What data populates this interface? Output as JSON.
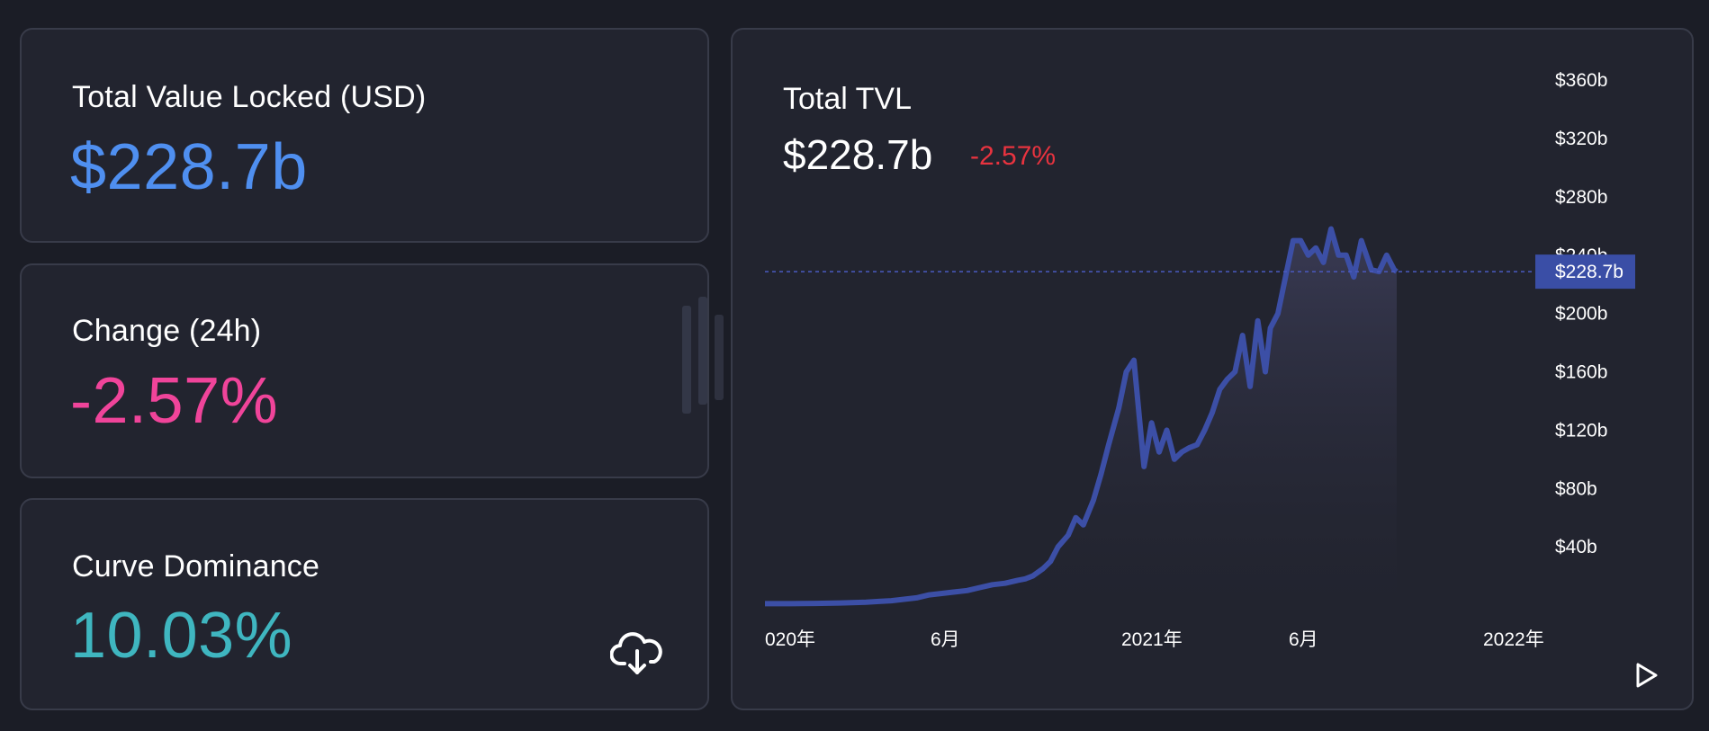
{
  "stats": {
    "tvl": {
      "label": "Total Value Locked (USD)",
      "value": "$228.7b",
      "color": "#4f8ff0"
    },
    "change": {
      "label": "Change (24h)",
      "value": "-2.57%",
      "color": "#f0449a"
    },
    "dominance": {
      "label": "Curve Dominance",
      "value": "10.03%",
      "color": "#3fb6c0"
    }
  },
  "icons": {
    "download": "cloud-download-icon",
    "play": "play-icon"
  },
  "chart": {
    "title": "Total TVL",
    "value": "$228.7b",
    "change": "-2.57%",
    "change_color": "#e8333f",
    "line_color": "#3c4fa6",
    "current_label": "$228.7b"
  },
  "chart_data": {
    "type": "area",
    "title": "Total TVL",
    "x_tick_labels": [
      "020年",
      "6月",
      "2021年",
      "6月",
      "2022年"
    ],
    "y_tick_labels": [
      "$40b",
      "$80b",
      "$120b",
      "$160b",
      "$200b",
      "$240b",
      "$280b",
      "$320b",
      "$360b"
    ],
    "ylim": [
      0,
      370
    ],
    "xlim": [
      0,
      25
    ],
    "current_value": 228.7,
    "series": [
      {
        "x": [
          0,
          1,
          2,
          3,
          4,
          4.5,
          5,
          5.5,
          6,
          6.5,
          7,
          7.5,
          8,
          8.5,
          9,
          9.5,
          10,
          10.3,
          10.6,
          11,
          11.3,
          11.6,
          12,
          12.3,
          12.6,
          13,
          13.3,
          13.6,
          14,
          14.3,
          14.6,
          15,
          15.3,
          15.6,
          15.9,
          16.2,
          16.5,
          16.8,
          17.1,
          17.4,
          17.7,
          18,
          18.3,
          18.6,
          18.9,
          19.2,
          19.5,
          19.8,
          20,
          20.3,
          20.6,
          20.9,
          21.2,
          21.5,
          21.8,
          22.1,
          22.4,
          22.7,
          23,
          23.3,
          23.6,
          24,
          24.3,
          24.6,
          24.9,
          25
        ],
        "values": [
          1,
          1,
          1.2,
          1.5,
          2,
          2.5,
          3,
          4,
          5,
          7,
          8,
          9,
          10,
          12,
          14,
          15,
          17,
          18,
          20,
          25,
          30,
          40,
          48,
          60,
          55,
          72,
          90,
          110,
          135,
          160,
          168,
          95,
          125,
          105,
          120,
          100,
          105,
          108,
          110,
          120,
          132,
          148,
          155,
          160,
          185,
          150,
          195,
          160,
          190,
          200,
          225,
          250,
          250,
          240,
          245,
          235,
          258,
          240,
          240,
          225,
          250,
          230,
          228.7,
          240,
          230,
          228.7
        ]
      }
    ]
  }
}
